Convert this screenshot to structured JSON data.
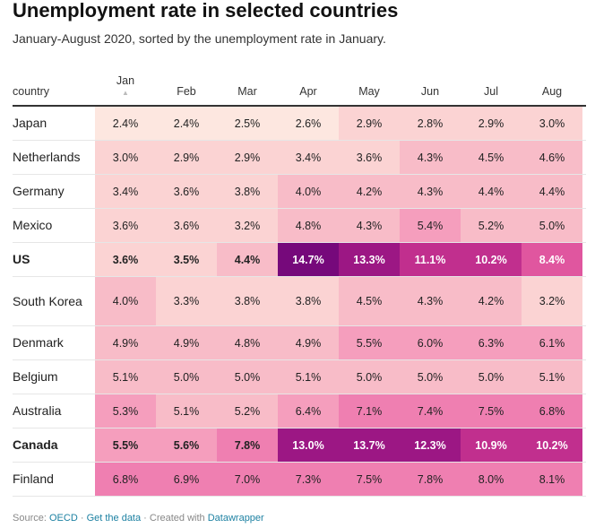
{
  "title": "Unemployment rate in selected countries",
  "subtitle": "January-August 2020, sorted by the unemployment rate in January.",
  "chart_data": {
    "type": "heatmap",
    "row_header": "country",
    "columns": [
      "Jan",
      "Feb",
      "Mar",
      "Apr",
      "May",
      "Jun",
      "Jul",
      "Aug"
    ],
    "sorted_column": "Jan",
    "rows": [
      {
        "country": "Japan",
        "bold": false,
        "values": [
          2.4,
          2.4,
          2.5,
          2.6,
          2.9,
          2.8,
          2.9,
          3.0
        ],
        "labels": [
          "2.4%",
          "2.4%",
          "2.5%",
          "2.6%",
          "2.9%",
          "2.8%",
          "2.9%",
          "3.0%"
        ]
      },
      {
        "country": "Netherlands",
        "bold": false,
        "values": [
          3.0,
          2.9,
          2.9,
          3.4,
          3.6,
          4.3,
          4.5,
          4.6
        ],
        "labels": [
          "3.0%",
          "2.9%",
          "2.9%",
          "3.4%",
          "3.6%",
          "4.3%",
          "4.5%",
          "4.6%"
        ]
      },
      {
        "country": "Germany",
        "bold": false,
        "values": [
          3.4,
          3.6,
          3.8,
          4.0,
          4.2,
          4.3,
          4.4,
          4.4
        ],
        "labels": [
          "3.4%",
          "3.6%",
          "3.8%",
          "4.0%",
          "4.2%",
          "4.3%",
          "4.4%",
          "4.4%"
        ]
      },
      {
        "country": "Mexico",
        "bold": false,
        "values": [
          3.6,
          3.6,
          3.2,
          4.8,
          4.3,
          5.4,
          5.2,
          5.0
        ],
        "labels": [
          "3.6%",
          "3.6%",
          "3.2%",
          "4.8%",
          "4.3%",
          "5.4%",
          "5.2%",
          "5.0%"
        ]
      },
      {
        "country": "US",
        "bold": true,
        "values": [
          3.6,
          3.5,
          4.4,
          14.7,
          13.3,
          11.1,
          10.2,
          8.4
        ],
        "labels": [
          "3.6%",
          "3.5%",
          "4.4%",
          "14.7%",
          "13.3%",
          "11.1%",
          "10.2%",
          "8.4%"
        ]
      },
      {
        "country": "South Korea",
        "bold": false,
        "values": [
          4.0,
          3.3,
          3.8,
          3.8,
          4.5,
          4.3,
          4.2,
          3.2
        ],
        "labels": [
          "4.0%",
          "3.3%",
          "3.8%",
          "3.8%",
          "4.5%",
          "4.3%",
          "4.2%",
          "3.2%"
        ]
      },
      {
        "country": "Denmark",
        "bold": false,
        "values": [
          4.9,
          4.9,
          4.8,
          4.9,
          5.5,
          6.0,
          6.3,
          6.1
        ],
        "labels": [
          "4.9%",
          "4.9%",
          "4.8%",
          "4.9%",
          "5.5%",
          "6.0%",
          "6.3%",
          "6.1%"
        ]
      },
      {
        "country": "Belgium",
        "bold": false,
        "values": [
          5.1,
          5.0,
          5.0,
          5.1,
          5.0,
          5.0,
          5.0,
          5.1
        ],
        "labels": [
          "5.1%",
          "5.0%",
          "5.0%",
          "5.1%",
          "5.0%",
          "5.0%",
          "5.0%",
          "5.1%"
        ]
      },
      {
        "country": "Australia",
        "bold": false,
        "values": [
          5.3,
          5.1,
          5.2,
          6.4,
          7.1,
          7.4,
          7.5,
          6.8
        ],
        "labels": [
          "5.3%",
          "5.1%",
          "5.2%",
          "6.4%",
          "7.1%",
          "7.4%",
          "7.5%",
          "6.8%"
        ]
      },
      {
        "country": "Canada",
        "bold": true,
        "values": [
          5.5,
          5.6,
          7.8,
          13.0,
          13.7,
          12.3,
          10.9,
          10.2
        ],
        "labels": [
          "5.5%",
          "5.6%",
          "7.8%",
          "13.0%",
          "13.7%",
          "12.3%",
          "10.9%",
          "10.2%"
        ]
      },
      {
        "country": "Finland",
        "bold": false,
        "values": [
          6.8,
          6.9,
          7.0,
          7.3,
          7.5,
          7.8,
          8.0,
          8.1
        ],
        "labels": [
          "6.8%",
          "6.9%",
          "7.0%",
          "7.3%",
          "7.5%",
          "7.8%",
          "8.0%",
          "8.1%"
        ]
      }
    ]
  },
  "colors": {
    "scale": [
      "#fde7e0",
      "#fbd3d3",
      "#f8bcc8",
      "#f59ebd",
      "#ef7fb1",
      "#e0569f",
      "#c12f8e",
      "#9c1784",
      "#76097b"
    ],
    "scale_min": 2.4,
    "scale_max": 14.7,
    "link": "#1d81a2"
  },
  "footer": {
    "source_label": "Source:",
    "source_link": "OECD",
    "sep1": "·",
    "get_data": "Get the data",
    "sep2": "·",
    "created_with": "Created with",
    "tool": "Datawrapper"
  }
}
